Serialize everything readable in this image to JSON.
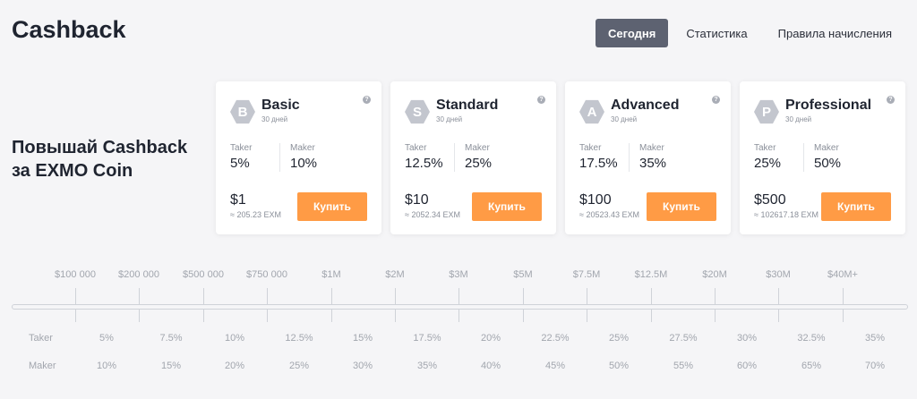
{
  "header": {
    "title": "Cashback",
    "tabs": [
      {
        "label": "Сегодня",
        "active": true
      },
      {
        "label": "Статистика",
        "active": false
      },
      {
        "label": "Правила начисления",
        "active": false
      }
    ]
  },
  "promo": {
    "line1": "Повышай Cashback",
    "line2": "за EXMO Coin"
  },
  "cards": [
    {
      "letter": "B",
      "name": "Basic",
      "period": "30 дней",
      "taker_label": "Taker",
      "taker": "5%",
      "maker_label": "Maker",
      "maker": "10%",
      "price": "$1",
      "exm": "≈ 205.23 EXM",
      "buy": "Купить"
    },
    {
      "letter": "S",
      "name": "Standard",
      "period": "30 дней",
      "taker_label": "Taker",
      "taker": "12.5%",
      "maker_label": "Maker",
      "maker": "25%",
      "price": "$10",
      "exm": "≈ 2052.34 EXM",
      "buy": "Купить"
    },
    {
      "letter": "A",
      "name": "Advanced",
      "period": "30 дней",
      "taker_label": "Taker",
      "taker": "17.5%",
      "maker_label": "Maker",
      "maker": "35%",
      "price": "$100",
      "exm": "≈ 20523.43 EXM",
      "buy": "Купить"
    },
    {
      "letter": "P",
      "name": "Professional",
      "period": "30 дней",
      "taker_label": "Taker",
      "taker": "25%",
      "maker_label": "Maker",
      "maker": "50%",
      "price": "$500",
      "exm": "≈ 102617.18 EXM",
      "buy": "Купить"
    }
  ],
  "help_glyph": "?",
  "colors": {
    "accent": "#ff9b45",
    "tab_active": "#5d6271",
    "badge": "#c3c6ce"
  },
  "scale": {
    "volumes": [
      "$100 000",
      "$200 000",
      "$500 000",
      "$750 000",
      "$1M",
      "$2M",
      "$3M",
      "$5M",
      "$7.5M",
      "$12.5M",
      "$20M",
      "$30M",
      "$40M+"
    ],
    "taker_label": "Taker",
    "maker_label": "Maker",
    "taker": [
      "5%",
      "7.5%",
      "10%",
      "12.5%",
      "15%",
      "17.5%",
      "20%",
      "22.5%",
      "25%",
      "27.5%",
      "30%",
      "32.5%",
      "35%"
    ],
    "maker": [
      "10%",
      "15%",
      "20%",
      "25%",
      "30%",
      "35%",
      "40%",
      "45%",
      "50%",
      "55%",
      "60%",
      "65%",
      "70%"
    ]
  }
}
